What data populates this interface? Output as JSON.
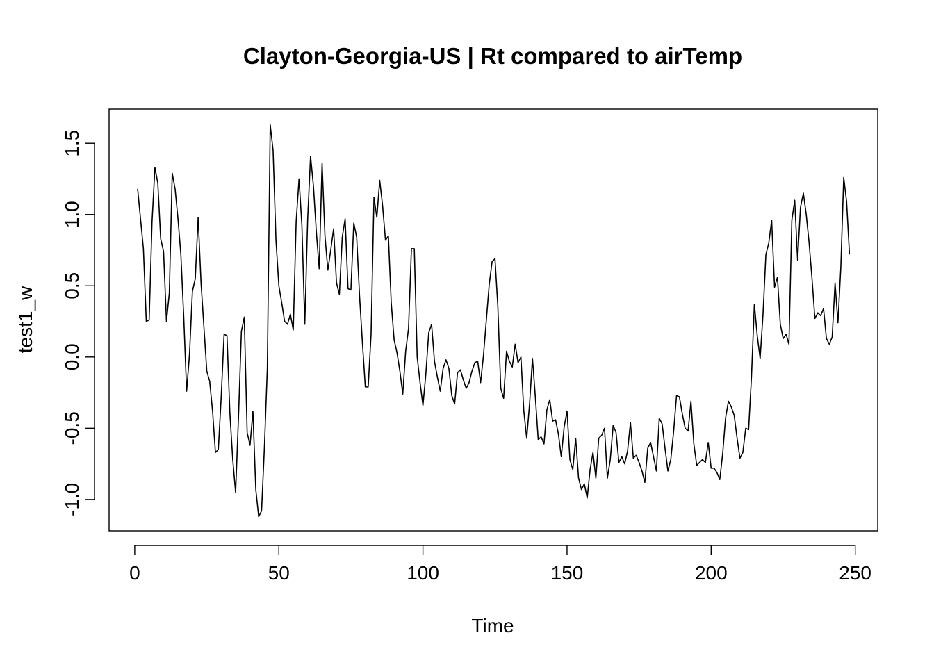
{
  "chart_data": {
    "type": "line",
    "title": "Clayton-Georgia-US | Rt compared to airTemp",
    "xlabel": "Time",
    "ylabel": "test1_w",
    "xlim": [
      -8.9,
      257.8
    ],
    "ylim": [
      -1.22,
      1.74
    ],
    "xticks": [
      0,
      50,
      100,
      150,
      200,
      250
    ],
    "yticks": [
      -1.0,
      -0.5,
      0.0,
      0.5,
      1.0,
      1.5
    ],
    "xtick_labels": [
      "0",
      "50",
      "100",
      "150",
      "200",
      "250"
    ],
    "ytick_labels": [
      "-1.0",
      "-0.5",
      "0.0",
      "0.5",
      "1.0",
      "1.5"
    ],
    "grid": false,
    "legend": "none",
    "series": [
      {
        "color": "#000000",
        "x": [
          1,
          2,
          3,
          4,
          5,
          6,
          7,
          8,
          9,
          10,
          11,
          12,
          13,
          14,
          15,
          16,
          17,
          18,
          19,
          20,
          21,
          22,
          23,
          24,
          25,
          26,
          27,
          28,
          29,
          30,
          31,
          32,
          33,
          34,
          35,
          36,
          37,
          38,
          39,
          40,
          41,
          42,
          43,
          44,
          45,
          46,
          47,
          48,
          49,
          50,
          51,
          52,
          53,
          54,
          55,
          56,
          57,
          58,
          59,
          60,
          61,
          62,
          63,
          64,
          65,
          66,
          67,
          68,
          69,
          70,
          71,
          72,
          73,
          74,
          75,
          76,
          77,
          78,
          79,
          80,
          81,
          82,
          83,
          84,
          85,
          86,
          87,
          88,
          89,
          90,
          91,
          92,
          93,
          94,
          95,
          96,
          97,
          98,
          99,
          100,
          101,
          102,
          103,
          104,
          105,
          106,
          107,
          108,
          109,
          110,
          111,
          112,
          113,
          114,
          115,
          116,
          117,
          118,
          119,
          120,
          121,
          122,
          123,
          124,
          125,
          126,
          127,
          128,
          129,
          130,
          131,
          132,
          133,
          134,
          135,
          136,
          137,
          138,
          139,
          140,
          141,
          142,
          143,
          144,
          145,
          146,
          147,
          148,
          149,
          150,
          151,
          152,
          153,
          154,
          155,
          156,
          157,
          158,
          159,
          160,
          161,
          162,
          163,
          164,
          165,
          166,
          167,
          168,
          169,
          170,
          171,
          172,
          173,
          174,
          175,
          176,
          177,
          178,
          179,
          180,
          181,
          182,
          183,
          184,
          185,
          186,
          187,
          188,
          189,
          190,
          191,
          192,
          193,
          194,
          195,
          196,
          197,
          198,
          199,
          200,
          201,
          202,
          203,
          204,
          205,
          206,
          207,
          208,
          209,
          210,
          211,
          212,
          213,
          214,
          215,
          216,
          217,
          218,
          219,
          220,
          221,
          222,
          223,
          224,
          225,
          226,
          227,
          228,
          229,
          230,
          231,
          232,
          233,
          234,
          235,
          236,
          237,
          238,
          239,
          240,
          241,
          242,
          243,
          244,
          245,
          246,
          247,
          248
        ],
        "y": [
          1.18,
          0.97,
          0.76,
          0.25,
          0.26,
          0.95,
          1.33,
          1.22,
          0.83,
          0.74,
          0.25,
          0.45,
          1.29,
          1.18,
          0.97,
          0.72,
          0.28,
          -0.24,
          0.02,
          0.46,
          0.55,
          0.98,
          0.52,
          0.21,
          -0.1,
          -0.17,
          -0.38,
          -0.67,
          -0.65,
          -0.28,
          0.16,
          0.15,
          -0.39,
          -0.72,
          -0.95,
          -0.42,
          0.18,
          0.28,
          -0.53,
          -0.62,
          -0.38,
          -0.93,
          -1.12,
          -1.08,
          -0.63,
          -0.08,
          1.63,
          1.45,
          0.82,
          0.5,
          0.38,
          0.25,
          0.23,
          0.3,
          0.19,
          0.95,
          1.25,
          0.92,
          0.23,
          0.97,
          1.41,
          1.2,
          0.88,
          0.62,
          1.36,
          0.85,
          0.61,
          0.75,
          0.9,
          0.52,
          0.44,
          0.84,
          0.97,
          0.48,
          0.47,
          0.94,
          0.84,
          0.43,
          0.1,
          -0.21,
          -0.21,
          0.16,
          1.12,
          0.98,
          1.24,
          1.06,
          0.82,
          0.85,
          0.38,
          0.12,
          0.03,
          -0.1,
          -0.26,
          0.04,
          0.2,
          0.76,
          0.76,
          0.0,
          -0.18,
          -0.34,
          -0.12,
          0.17,
          0.23,
          -0.03,
          -0.14,
          -0.24,
          -0.08,
          -0.02,
          -0.08,
          -0.27,
          -0.33,
          -0.11,
          -0.09,
          -0.16,
          -0.22,
          -0.18,
          -0.1,
          -0.04,
          -0.03,
          -0.18,
          0.01,
          0.26,
          0.51,
          0.67,
          0.69,
          0.35,
          -0.22,
          -0.29,
          0.04,
          -0.03,
          -0.07,
          0.09,
          -0.04,
          0.0,
          -0.38,
          -0.57,
          -0.33,
          -0.01,
          -0.28,
          -0.58,
          -0.56,
          -0.61,
          -0.37,
          -0.3,
          -0.45,
          -0.44,
          -0.54,
          -0.7,
          -0.49,
          -0.38,
          -0.72,
          -0.79,
          -0.57,
          -0.85,
          -0.93,
          -0.89,
          -0.99,
          -0.79,
          -0.67,
          -0.85,
          -0.57,
          -0.55,
          -0.5,
          -0.85,
          -0.72,
          -0.48,
          -0.53,
          -0.74,
          -0.7,
          -0.75,
          -0.66,
          -0.46,
          -0.71,
          -0.69,
          -0.74,
          -0.8,
          -0.88,
          -0.64,
          -0.6,
          -0.7,
          -0.8,
          -0.43,
          -0.47,
          -0.64,
          -0.8,
          -0.72,
          -0.52,
          -0.27,
          -0.28,
          -0.4,
          -0.5,
          -0.52,
          -0.31,
          -0.61,
          -0.76,
          -0.74,
          -0.72,
          -0.74,
          -0.6,
          -0.78,
          -0.78,
          -0.81,
          -0.86,
          -0.68,
          -0.43,
          -0.31,
          -0.35,
          -0.41,
          -0.57,
          -0.71,
          -0.67,
          -0.5,
          -0.51,
          -0.14,
          0.37,
          0.15,
          -0.01,
          0.3,
          0.72,
          0.8,
          0.96,
          0.49,
          0.56,
          0.23,
          0.13,
          0.16,
          0.09,
          0.96,
          1.1,
          0.68,
          1.05,
          1.15,
          1.0,
          0.8,
          0.55,
          0.27,
          0.31,
          0.29,
          0.34,
          0.13,
          0.09,
          0.14,
          0.52,
          0.24,
          0.63,
          1.26,
          1.09,
          0.72
        ]
      }
    ]
  }
}
